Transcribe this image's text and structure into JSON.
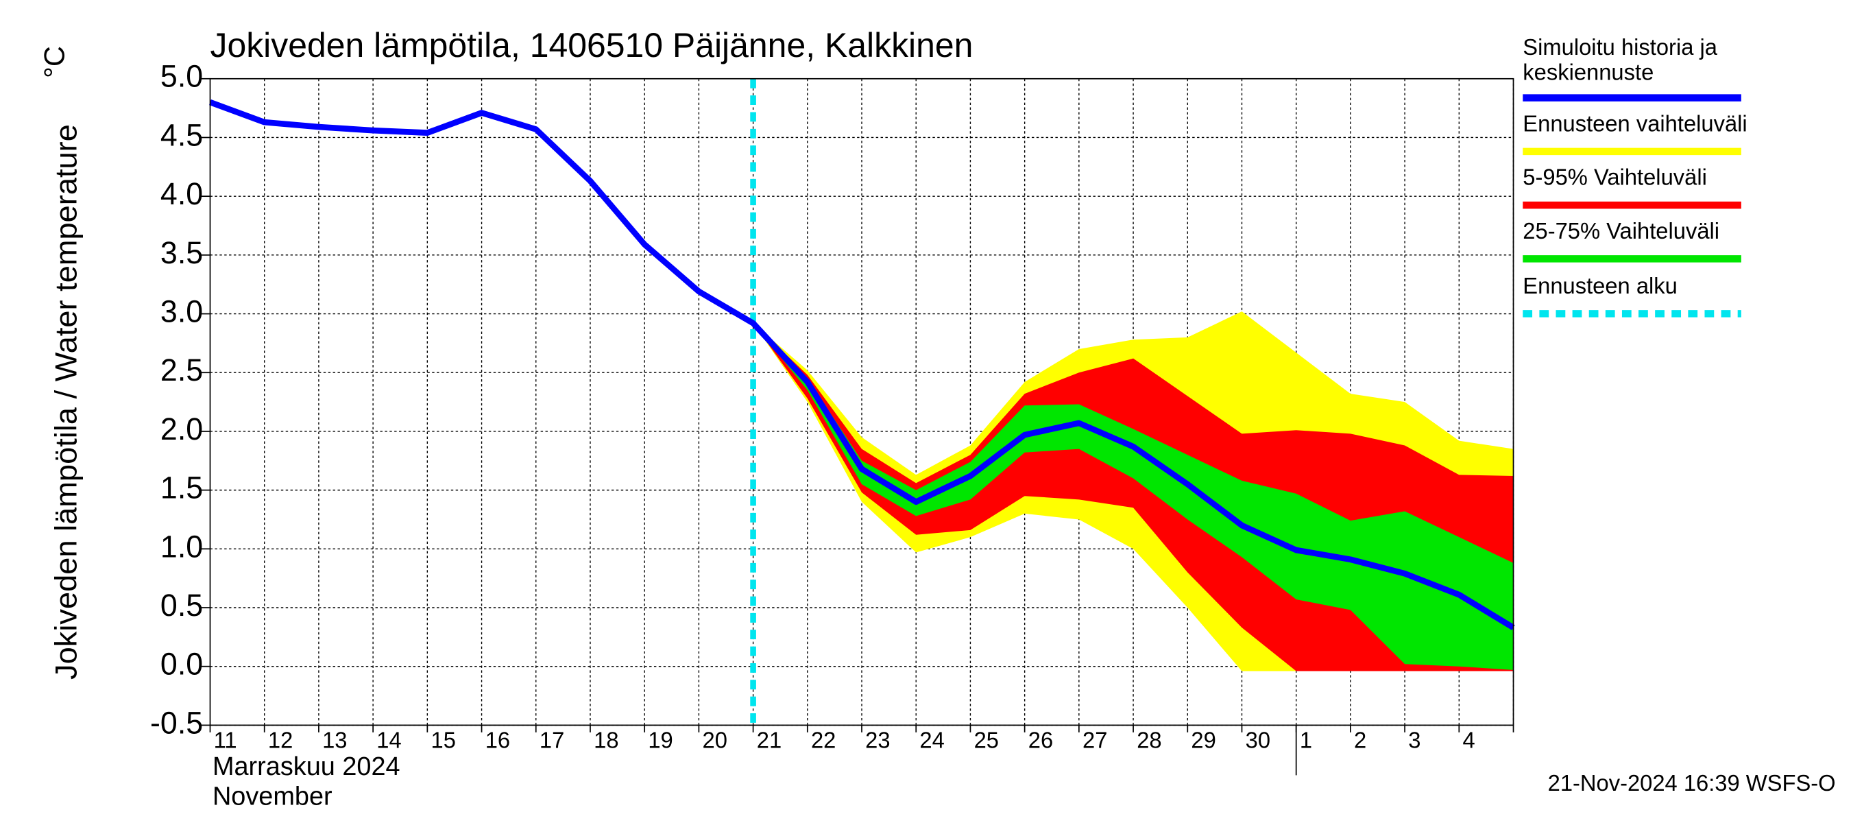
{
  "chart_data": {
    "type": "line",
    "title": "Jokiveden lämpötila, 1406510 Päijänne, Kalkkinen",
    "y_label": "Jokiveden lämpötila / Water temperature",
    "y_unit": "°C",
    "x_label_fi": "Marraskuu 2024",
    "x_label_en": "November",
    "footer": "21-Nov-2024 16:39 WSFS-O",
    "categories": [
      "11",
      "12",
      "13",
      "14",
      "15",
      "16",
      "17",
      "18",
      "19",
      "20",
      "21",
      "22",
      "23",
      "24",
      "25",
      "26",
      "27",
      "28",
      "29",
      "30",
      "1",
      "2",
      "3",
      "4",
      null
    ],
    "month_start": "1",
    "ylim": [
      -0.5,
      5.0
    ],
    "yticks": [
      {
        "value": 5.0,
        "label": "5.0"
      },
      4.5,
      {
        "value": 4.0,
        "label": "4.0"
      },
      3.5,
      {
        "value": 3.0,
        "label": "3.0"
      },
      2.5,
      {
        "value": 2.0,
        "label": "2.0"
      },
      1.5,
      {
        "value": 1.0,
        "label": "1.0"
      },
      0.5,
      {
        "value": 0.0,
        "label": "0.0"
      },
      -0.5
    ],
    "grid": true,
    "bands": [
      {
        "name": "Ennusteen vaihteluväli",
        "color": "#ffff00",
        "upper": [
          null,
          null,
          null,
          null,
          null,
          null,
          null,
          null,
          null,
          null,
          2.92,
          2.52,
          1.95,
          1.63,
          1.88,
          2.42,
          2.7,
          2.78,
          2.8,
          3.02,
          2.67,
          2.32,
          2.25,
          1.92,
          1.85
        ],
        "lower": [
          null,
          null,
          null,
          null,
          null,
          null,
          null,
          null,
          null,
          null,
          2.92,
          2.25,
          1.4,
          0.97,
          1.1,
          1.3,
          1.25,
          1.0,
          0.5,
          -0.04,
          -0.04,
          -0.04,
          -0.04,
          -0.04,
          -0.04
        ]
      },
      {
        "name": "5-95% Vaihteluväli",
        "color": "#ff0000",
        "upper": [
          null,
          null,
          null,
          null,
          null,
          null,
          null,
          null,
          null,
          null,
          2.92,
          2.48,
          1.85,
          1.56,
          1.8,
          2.32,
          2.5,
          2.62,
          2.3,
          1.98,
          2.01,
          1.98,
          1.88,
          1.63,
          1.62
        ],
        "lower": [
          null,
          null,
          null,
          null,
          null,
          null,
          null,
          null,
          null,
          null,
          2.92,
          2.28,
          1.48,
          1.12,
          1.16,
          1.45,
          1.42,
          1.35,
          0.8,
          0.33,
          -0.04,
          -0.04,
          -0.04,
          -0.04,
          -0.04
        ]
      },
      {
        "name": "25-75% Vaihteluväli",
        "color": "#00e600",
        "upper": [
          null,
          null,
          null,
          null,
          null,
          null,
          null,
          null,
          null,
          null,
          2.92,
          2.45,
          1.75,
          1.5,
          1.74,
          2.22,
          2.23,
          2.02,
          1.8,
          1.58,
          1.47,
          1.24,
          1.32,
          1.1,
          0.88
        ],
        "lower": [
          null,
          null,
          null,
          null,
          null,
          null,
          null,
          null,
          null,
          null,
          2.92,
          2.35,
          1.55,
          1.28,
          1.42,
          1.82,
          1.85,
          1.6,
          1.25,
          0.93,
          0.57,
          0.48,
          0.02,
          0.0,
          -0.03
        ]
      }
    ],
    "series": [
      {
        "name": "Simuloitu historia ja keskiennuste",
        "color": "#0000ff",
        "values": [
          4.8,
          4.63,
          4.59,
          4.56,
          4.54,
          4.71,
          4.57,
          4.13,
          3.59,
          3.19,
          2.92,
          2.42,
          1.68,
          1.4,
          1.62,
          1.97,
          2.07,
          1.87,
          1.55,
          1.2,
          0.99,
          0.91,
          0.79,
          0.61,
          0.33
        ]
      }
    ],
    "forecast_start": {
      "name": "Ennusteen alku",
      "color": "#00e5ee",
      "at": "21"
    }
  }
}
